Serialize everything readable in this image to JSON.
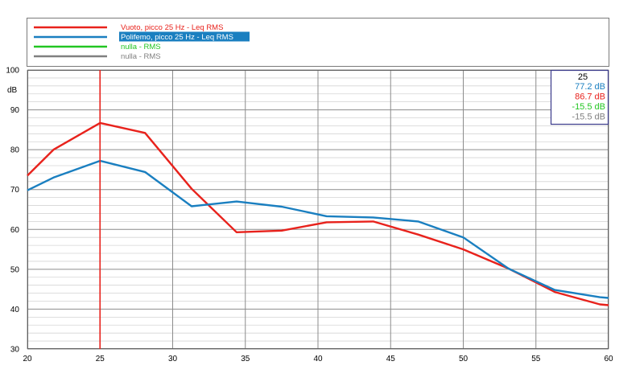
{
  "chart_data": {
    "type": "line",
    "title": "",
    "xlabel": "",
    "ylabel": "dB",
    "xlim": [
      20,
      60
    ],
    "ylim": [
      30,
      100
    ],
    "x_ticks": [
      20,
      25,
      30,
      35,
      40,
      45,
      50,
      55,
      60
    ],
    "y_ticks": [
      30,
      40,
      50,
      60,
      70,
      80,
      90,
      100
    ],
    "y_unit_label": "dB",
    "grid": true,
    "legend_placement": "top",
    "cursor": {
      "x": 25,
      "color": "#e8221c",
      "readout": {
        "header": "25",
        "values": [
          {
            "text": "77.2 dB",
            "color": "#1a7fc0"
          },
          {
            "text": "86.7 dB",
            "color": "#e8221c"
          },
          {
            "text": "-15.5 dB",
            "color": "#22c622"
          },
          {
            "text": "-15.5 dB",
            "color": "#808080"
          }
        ]
      }
    },
    "legend": [
      {
        "label": "Vuoto, picco 25 Hz - Leq RMS",
        "line_color": "#e8221c",
        "text_color": "#e8221c",
        "highlighted": false
      },
      {
        "label": "Polifemo, picco 25 Hz - Leq RMS",
        "line_color": "#1a7fc0",
        "text_color": "#ffffff",
        "highlighted": true,
        "highlight_color": "#1a7fc0"
      },
      {
        "label": "nulla -  RMS",
        "line_color": "#22c622",
        "text_color": "#22c622",
        "highlighted": false
      },
      {
        "label": "nulla -  RMS",
        "line_color": "#808080",
        "text_color": "#808080",
        "highlighted": false
      }
    ],
    "series": [
      {
        "name": "Vuoto, picco 25 Hz - Leq RMS",
        "color": "#e8221c",
        "x": [
          20,
          21.8,
          25,
          28.1,
          31.3,
          34.4,
          37.5,
          40.6,
          43.8,
          46.9,
          50,
          53.1,
          56.3,
          59.4,
          60
        ],
        "values": [
          73.5,
          80,
          86.7,
          84.2,
          70.2,
          59.3,
          59.7,
          61.8,
          62,
          58.7,
          55,
          50.2,
          44.3,
          41.2,
          41
        ]
      },
      {
        "name": "Polifemo, picco 25 Hz - Leq RMS",
        "color": "#1a7fc0",
        "x": [
          20,
          21.8,
          25,
          28.1,
          31.3,
          34.4,
          37.5,
          40.6,
          43.8,
          46.9,
          50,
          53.1,
          56.3,
          59.4,
          60
        ],
        "values": [
          69.8,
          73,
          77.2,
          74.4,
          65.8,
          67,
          65.7,
          63.3,
          63,
          62,
          58,
          50.2,
          44.8,
          43,
          42.8
        ]
      }
    ]
  }
}
